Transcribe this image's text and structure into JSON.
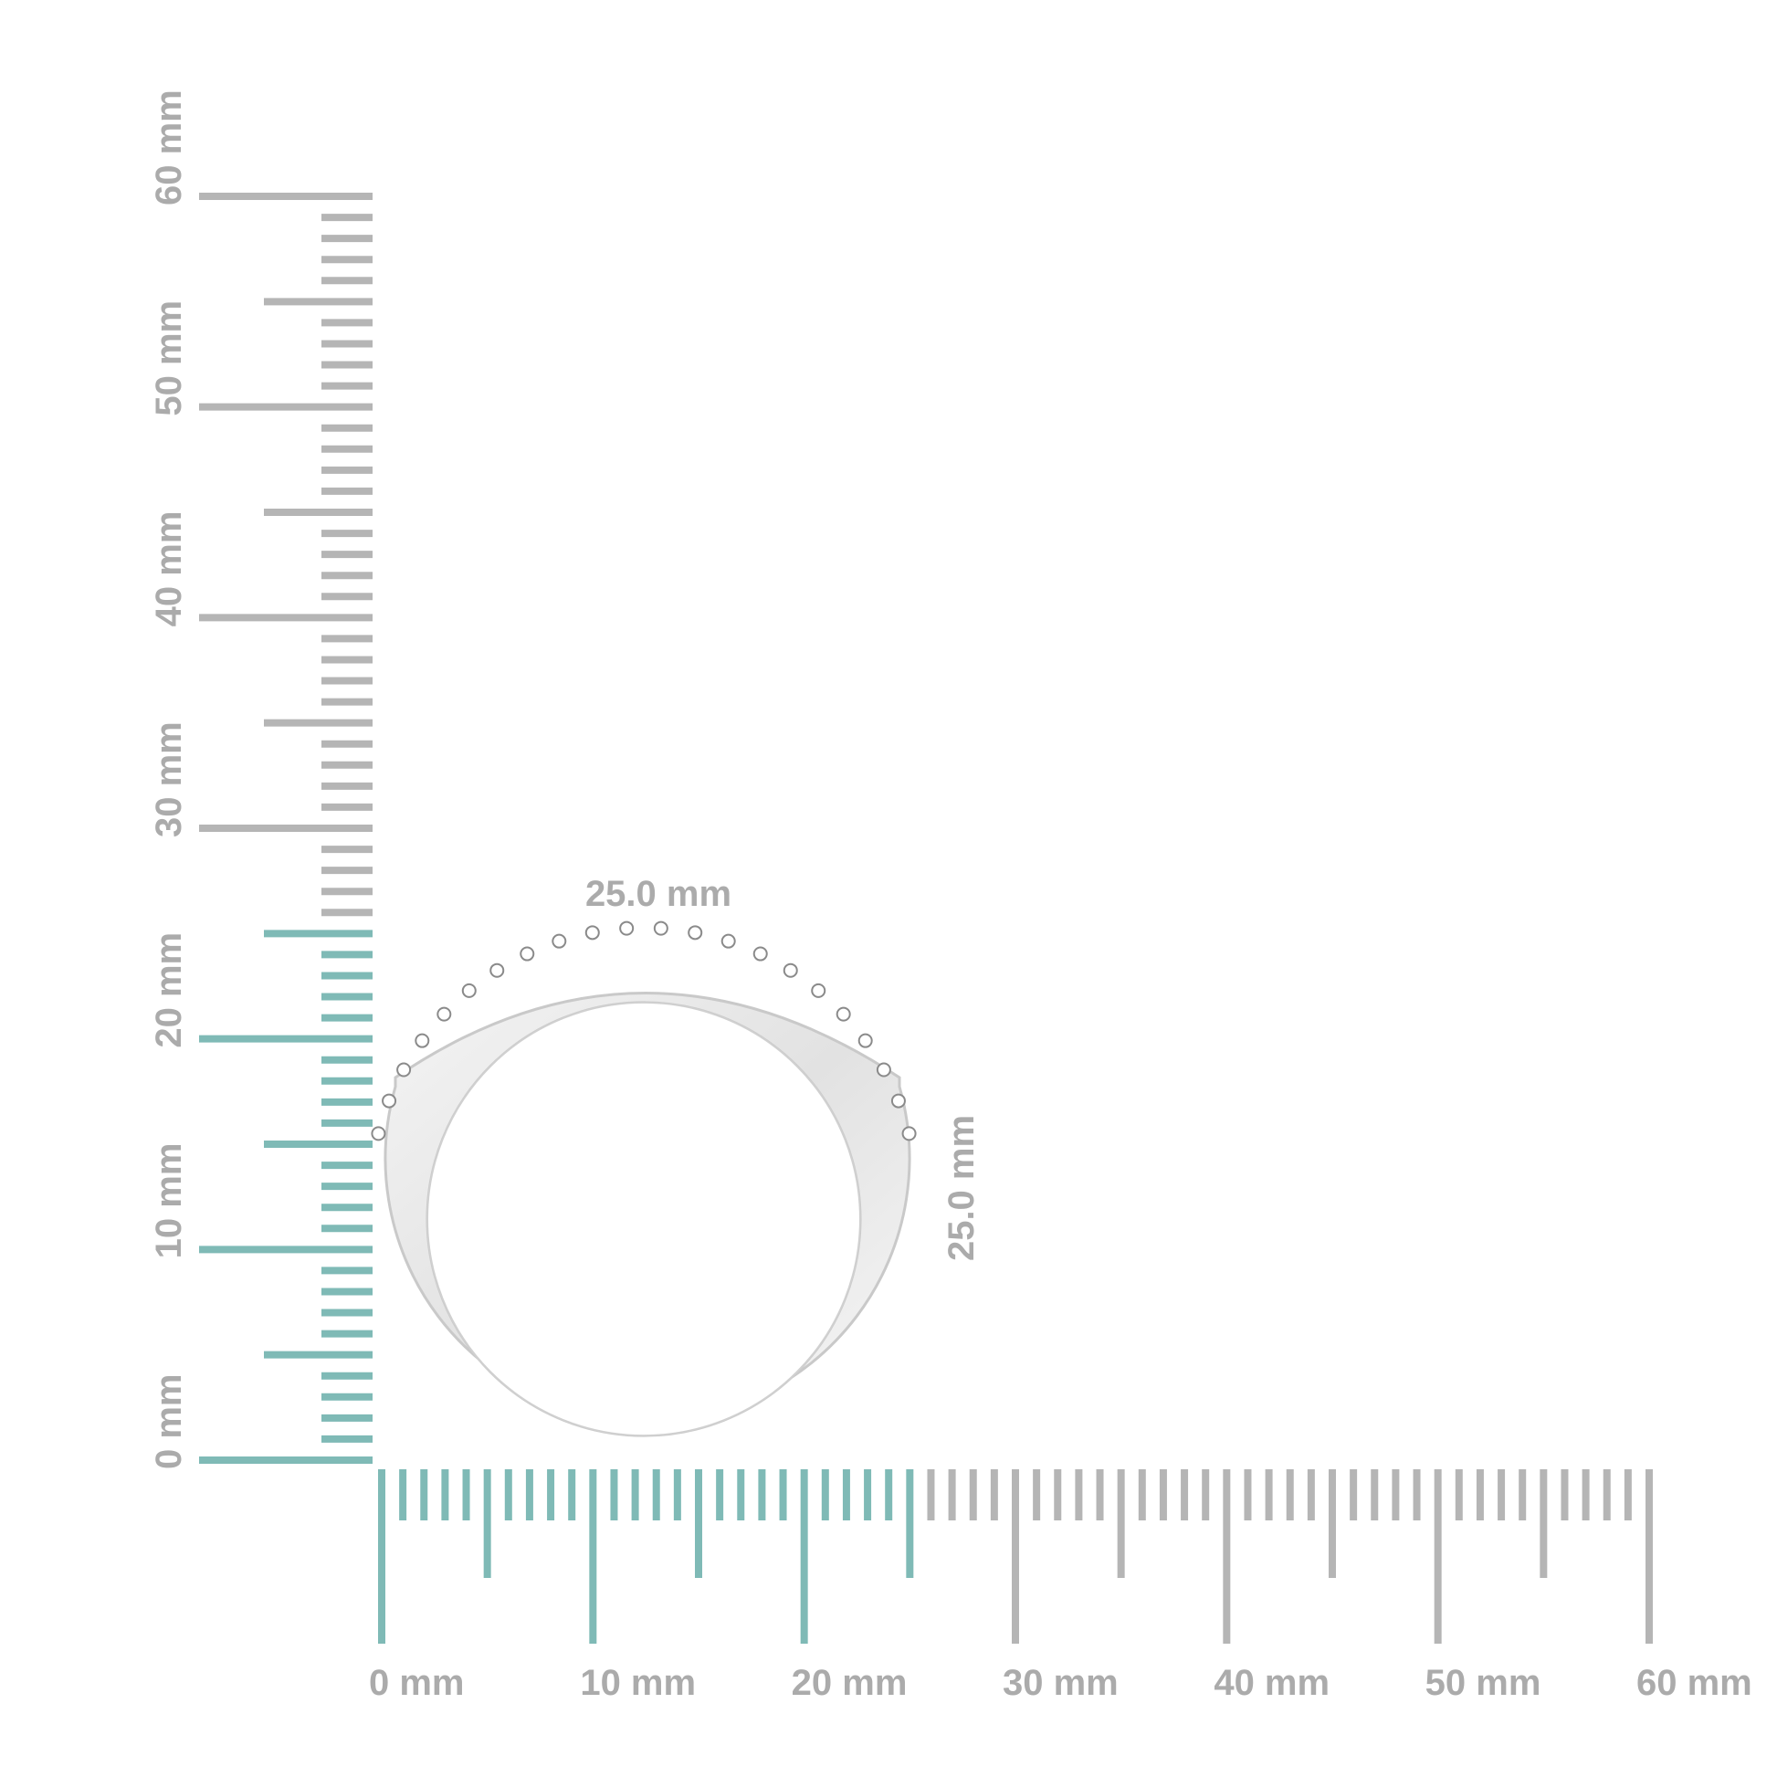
{
  "horizontal_ruler": {
    "labels": [
      "0 mm",
      "10 mm",
      "20 mm",
      "30 mm",
      "40 mm",
      "50 mm",
      "60 mm"
    ]
  },
  "vertical_ruler": {
    "labels": [
      "0 mm",
      "10 mm",
      "20 mm",
      "30 mm",
      "40 mm",
      "50 mm",
      "60 mm"
    ]
  },
  "dimensions": {
    "width": "25.0 mm",
    "height": "25.0 mm"
  }
}
